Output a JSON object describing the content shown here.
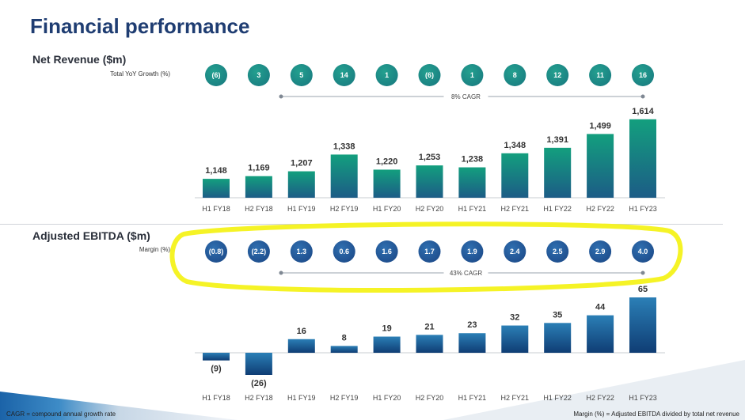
{
  "page_title": "Financial performance",
  "sections": {
    "revenue": {
      "title": "Net Revenue ($m)",
      "row_label": "Total YoY Growth (%)",
      "cagr_label": "8% CAGR"
    },
    "ebitda": {
      "title": "Adjusted EBITDA ($m)",
      "row_label": "Margin (%)",
      "cagr_label": "43% CAGR"
    }
  },
  "footer": {
    "left": "CAGR = compound annual growth rate",
    "right": "Margin (%) = Adjusted EBITDA divided by total net revenue"
  },
  "colors": {
    "title": "#1f3d72",
    "revenue_bar_top": "#139f7e",
    "revenue_bar_bottom": "#1c5c86",
    "ebitda_bar_top": "#2b7fb6",
    "ebitda_bar_bottom": "#0f3d74",
    "growth_circle": "#1a7f82",
    "margin_circle": "#1e4d8c",
    "highlight": "#f4f21a"
  },
  "chart_data": [
    {
      "type": "bar",
      "title": "Net Revenue ($m)",
      "categories": [
        "H1 FY18",
        "H2 FY18",
        "H1 FY19",
        "H2 FY19",
        "H1 FY20",
        "H2 FY20",
        "H1 FY21",
        "H2 FY21",
        "H1 FY22",
        "H2 FY22",
        "H1 FY23"
      ],
      "values": [
        1148,
        1169,
        1207,
        1338,
        1220,
        1253,
        1238,
        1348,
        1391,
        1499,
        1614
      ],
      "value_labels": [
        "1,148",
        "1,169",
        "1,207",
        "1,338",
        "1,220",
        "1,253",
        "1,238",
        "1,348",
        "1,391",
        "1,499",
        "1,614"
      ],
      "axis_min": 1000,
      "axis_max": 1650,
      "indicator_label": "Total YoY Growth (%)",
      "indicator_values": [
        "(6)",
        "3",
        "5",
        "14",
        "1",
        "(6)",
        "1",
        "8",
        "12",
        "11",
        "16"
      ],
      "cagr_label": "8% CAGR"
    },
    {
      "type": "bar",
      "title": "Adjusted EBITDA ($m)",
      "categories": [
        "H1 FY18",
        "H2 FY18",
        "H1 FY19",
        "H2 FY19",
        "H1 FY20",
        "H2 FY20",
        "H1 FY21",
        "H2 FY21",
        "H1 FY22",
        "H2 FY22",
        "H1 FY23"
      ],
      "values": [
        -9,
        -26,
        16,
        8,
        19,
        21,
        23,
        32,
        35,
        44,
        65
      ],
      "value_labels": [
        "(9)",
        "(26)",
        "16",
        "8",
        "19",
        "21",
        "23",
        "32",
        "35",
        "44",
        "65"
      ],
      "axis_min": -30,
      "axis_max": 65,
      "indicator_label": "Margin (%)",
      "indicator_values": [
        "(0.8)",
        "(2.2)",
        "1.3",
        "0.6",
        "1.6",
        "1.7",
        "1.9",
        "2.4",
        "2.5",
        "2.9",
        "4.0"
      ],
      "cagr_label": "43% CAGR"
    }
  ]
}
